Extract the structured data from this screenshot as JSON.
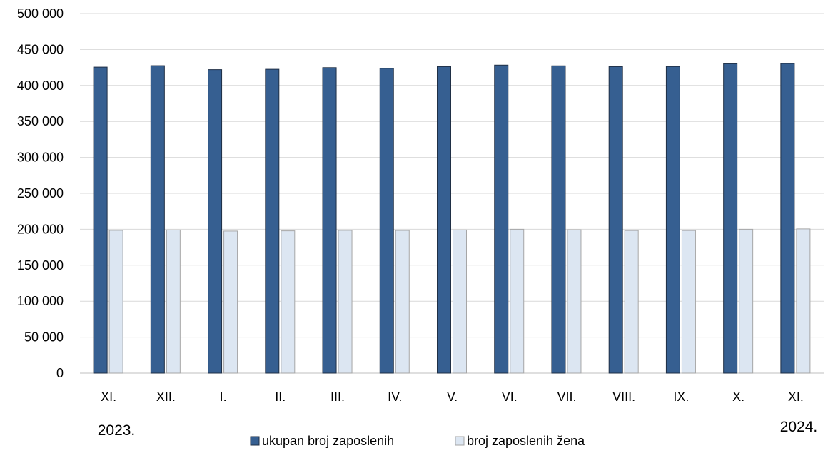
{
  "chart_data": {
    "type": "bar",
    "categories": [
      "XI.",
      "XII.",
      "I.",
      "II.",
      "III.",
      "IV.",
      "V.",
      "VI.",
      "VII.",
      "VIII.",
      "IX.",
      "X.",
      "XI."
    ],
    "series": [
      {
        "name": "ukupan broj zaposlenih",
        "color": "#365F91",
        "values": [
          425500,
          427500,
          422000,
          422500,
          424800,
          423800,
          426200,
          428300,
          427300,
          426200,
          426300,
          430200,
          430500
        ]
      },
      {
        "name": "broj zaposlenih žena",
        "color": "#DCE6F2",
        "values": [
          198500,
          199000,
          197500,
          197800,
          198500,
          198400,
          199000,
          200000,
          199300,
          198300,
          198300,
          200000,
          200500
        ]
      }
    ],
    "ylim": [
      0,
      500000
    ],
    "yticks": [
      0,
      50000,
      100000,
      150000,
      200000,
      250000,
      300000,
      350000,
      400000,
      450000,
      500000
    ],
    "ytick_labels": [
      "0",
      "50 000",
      "100 000",
      "150 000",
      "200 000",
      "250 000",
      "300 000",
      "350 000",
      "400 000",
      "450 000",
      "500 000"
    ],
    "year_labels": [
      "2023.",
      "2024."
    ],
    "title": "",
    "xlabel": "",
    "ylabel": "",
    "grid": true,
    "legend_position": "bottom"
  }
}
